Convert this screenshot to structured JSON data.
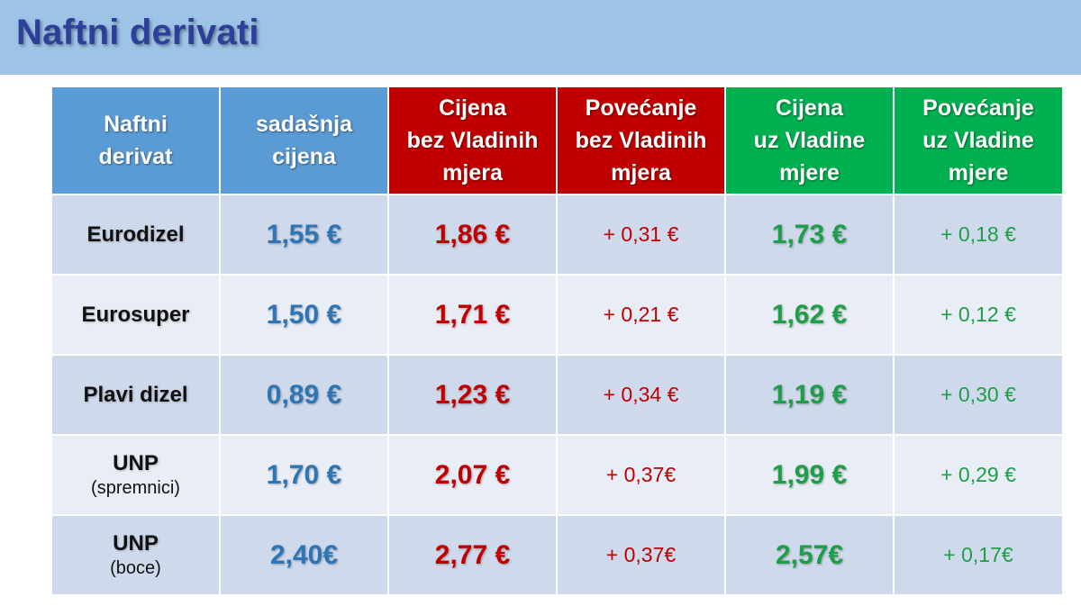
{
  "title": "Naftni derivati",
  "colors": {
    "title_bar": "#9dc3e6",
    "title_text": "#2e3f99",
    "header_blue": "#5b9bd5",
    "header_red": "#c00000",
    "header_green": "#00b050",
    "value_blue": "#2e75b6",
    "value_red": "#c00000",
    "value_green": "#1e9e48"
  },
  "table": {
    "headers": [
      [
        "Naftni",
        "derivat"
      ],
      [
        "sadašnja",
        "cijena"
      ],
      [
        "Cijena",
        "bez Vladinih",
        "mjera"
      ],
      [
        "Povećanje",
        "bez Vladinih",
        "mjera"
      ],
      [
        "Cijena",
        "uz Vladine",
        "mjere"
      ],
      [
        "Povećanje",
        "uz Vladine",
        "mjere"
      ]
    ],
    "rows": [
      {
        "name": "Eurodizel",
        "sub": "",
        "current": "1,55 €",
        "price_without": "1,86 €",
        "increase_without": "+ 0,31 €",
        "price_with": "1,73 €",
        "increase_with": "+ 0,18 €"
      },
      {
        "name": "Eurosuper",
        "sub": "",
        "current": "1,50 €",
        "price_without": "1,71 €",
        "increase_without": "+ 0,21 €",
        "price_with": "1,62 €",
        "increase_with": "+ 0,12 €"
      },
      {
        "name": "Plavi dizel",
        "sub": "",
        "current": "0,89 €",
        "price_without": "1,23 €",
        "increase_without": "+ 0,34 €",
        "price_with": "1,19 €",
        "increase_with": "+ 0,30 €"
      },
      {
        "name": "UNP",
        "sub": "(spremnici)",
        "current": "1,70 €",
        "price_without": "2,07 €",
        "increase_without": "+ 0,37€",
        "price_with": "1,99 €",
        "increase_with": "+ 0,29 €"
      },
      {
        "name": "UNP",
        "sub": "(boce)",
        "current": "2,40€",
        "price_without": "2,77 €",
        "increase_without": "+ 0,37€",
        "price_with": "2,57€",
        "increase_with": "+ 0,17€"
      }
    ]
  }
}
